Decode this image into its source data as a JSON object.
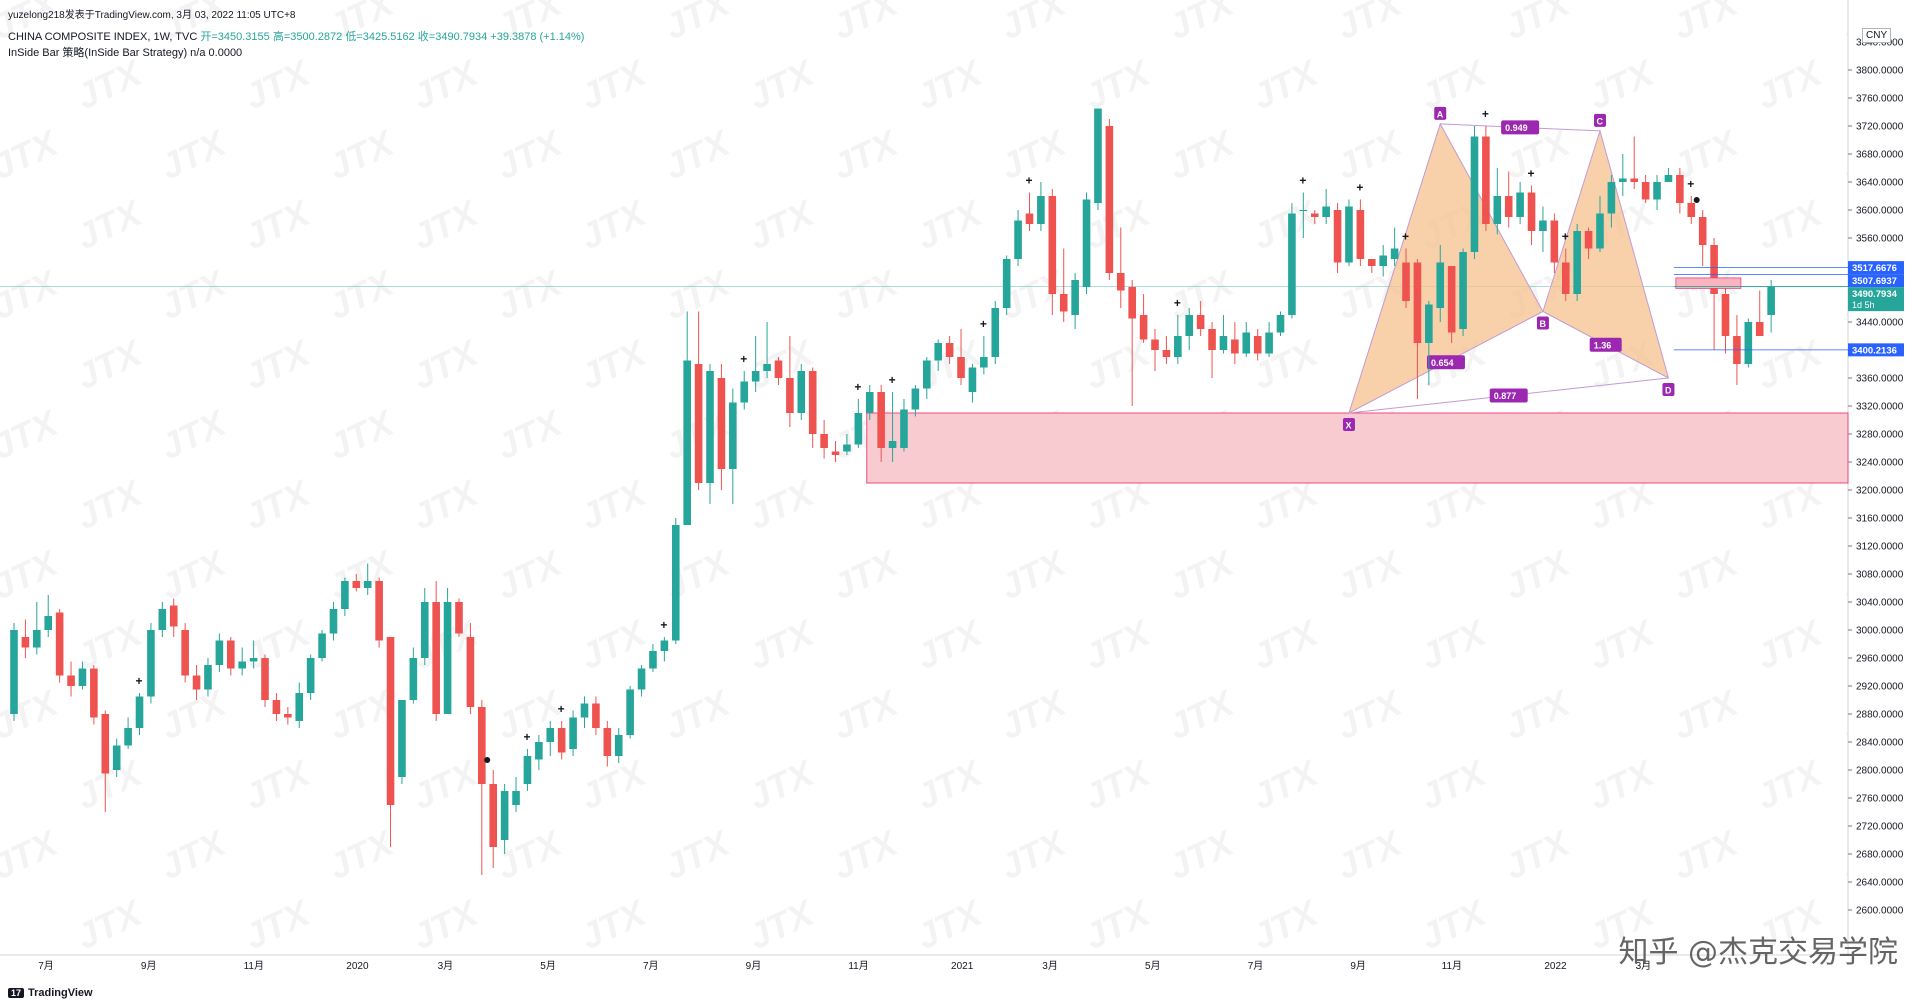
{
  "header": {
    "credit": "yuzelong218发表于TradingView.com, 3月 03, 2022 11:05 UTC+8",
    "symbol": "CHINA COMPOSITE INDEX, 1W, TVC",
    "open": "开=3450.3155",
    "high": "高=3500.2872",
    "low": "低=3425.5162",
    "close": "收=3490.7934",
    "change": "+39.3878 (+1.14%)",
    "indicator": "InSide Bar 策略(InSide Bar Strategy)  n/a  0.0000"
  },
  "currency": "CNY",
  "footer_logo": "TradingView",
  "brand_watermark": "知乎 @杰克交易学院",
  "colors": {
    "up": "#26a69a",
    "down": "#ef5350",
    "zone": "#f8c9cf",
    "zone_border": "#ec407a",
    "pattern": "#f5c08c",
    "pattern_line": "#c39bd3",
    "label_bg": "#9c27b0",
    "price_line": "#26a69a",
    "blue": "#2962ff"
  },
  "chart_data": {
    "type": "candlestick",
    "title": "CHINA COMPOSITE INDEX, 1W, TVC",
    "ylim": [
      2560,
      3820
    ],
    "yticks": [
      2600,
      2640,
      2680,
      2720,
      2760,
      2800,
      2840,
      2880,
      2920,
      2960,
      3000,
      3040,
      3080,
      3120,
      3160,
      3200,
      3240,
      3280,
      3320,
      3360,
      3400,
      3440,
      3480,
      3520,
      3560,
      3600,
      3640,
      3680,
      3720,
      3760,
      3800
    ],
    "ytick_labels": [
      "2600.0000",
      "2640.0000",
      "2680.0000",
      "2720.0000",
      "2760.0000",
      "2800.0000",
      "2840.0000",
      "2880.0000",
      "2920.0000",
      "2960.0000",
      "3000.0000",
      "3040.0000",
      "3080.0000",
      "3120.0000",
      "3160.0000",
      "3200.0000",
      "3240.0000",
      "3280.0000",
      "3320.0000",
      "3360.0000",
      "3400.0000",
      "3440.0000",
      "3480.0000",
      "3520.0000",
      "3560.0000",
      "3600.0000",
      "3640.0000",
      "3680.0000",
      "3720.0000",
      "3760.0000",
      "3800.0000"
    ],
    "top_partial_tick": "3840.0000",
    "xticks": [
      {
        "label": "7月",
        "i": 3
      },
      {
        "label": "9月",
        "i": 12
      },
      {
        "label": "11月",
        "i": 21
      },
      {
        "label": "2020",
        "i": 30
      },
      {
        "label": "3月",
        "i": 38
      },
      {
        "label": "5月",
        "i": 47
      },
      {
        "label": "7月",
        "i": 56
      },
      {
        "label": "9月",
        "i": 65
      },
      {
        "label": "11月",
        "i": 74
      },
      {
        "label": "2021",
        "i": 83
      },
      {
        "label": "3月",
        "i": 91
      },
      {
        "label": "5月",
        "i": 100
      },
      {
        "label": "7月",
        "i": 109
      },
      {
        "label": "9月",
        "i": 118
      },
      {
        "label": "11月",
        "i": 126
      },
      {
        "label": "2022",
        "i": 135
      },
      {
        "label": "3月",
        "i": 143
      }
    ],
    "candles": [
      [
        2880,
        3000,
        3010,
        2870
      ],
      [
        2990,
        2975,
        3015,
        2960
      ],
      [
        2975,
        3000,
        3040,
        2965
      ],
      [
        3000,
        3020,
        3050,
        2990
      ],
      [
        3025,
        2935,
        3030,
        2925
      ],
      [
        2935,
        2920,
        2955,
        2905
      ],
      [
        2920,
        2945,
        2955,
        2915
      ],
      [
        2945,
        2875,
        2950,
        2865
      ],
      [
        2880,
        2795,
        2885,
        2740
      ],
      [
        2800,
        2835,
        2845,
        2790
      ],
      [
        2835,
        2860,
        2875,
        2830
      ],
      [
        2860,
        2905,
        2910,
        2850
      ],
      [
        2905,
        3000,
        3010,
        2895
      ],
      [
        3000,
        3030,
        3040,
        2990
      ],
      [
        3035,
        3005,
        3045,
        2990
      ],
      [
        3000,
        2935,
        3010,
        2925
      ],
      [
        2935,
        2915,
        2950,
        2900
      ],
      [
        2915,
        2950,
        2960,
        2905
      ],
      [
        2950,
        2985,
        2995,
        2940
      ],
      [
        2985,
        2945,
        2990,
        2935
      ],
      [
        2945,
        2955,
        2975,
        2935
      ],
      [
        2955,
        2960,
        2985,
        2945
      ],
      [
        2960,
        2900,
        2965,
        2890
      ],
      [
        2900,
        2880,
        2910,
        2870
      ],
      [
        2880,
        2875,
        2890,
        2865
      ],
      [
        2870,
        2910,
        2925,
        2860
      ],
      [
        2910,
        2960,
        2965,
        2900
      ],
      [
        2960,
        2995,
        3000,
        2955
      ],
      [
        2995,
        3030,
        3040,
        2985
      ],
      [
        3030,
        3070,
        3075,
        3020
      ],
      [
        3070,
        3060,
        3080,
        3055
      ],
      [
        3060,
        3070,
        3095,
        3050
      ],
      [
        3070,
        2985,
        3075,
        2975
      ],
      [
        2990,
        2750,
        2990,
        2690
      ],
      [
        2790,
        2900,
        2900,
        2780
      ],
      [
        2900,
        2960,
        2975,
        2895
      ],
      [
        2960,
        3040,
        3060,
        2950
      ],
      [
        3040,
        2880,
        3070,
        2870
      ],
      [
        2880,
        3040,
        3060,
        2880
      ],
      [
        3040,
        2995,
        3045,
        2990
      ],
      [
        2990,
        2890,
        3010,
        2880
      ],
      [
        2890,
        2780,
        2900,
        2650
      ],
      [
        2780,
        2690,
        2800,
        2660
      ],
      [
        2700,
        2770,
        2780,
        2680
      ],
      [
        2750,
        2770,
        2790,
        2740
      ],
      [
        2780,
        2820,
        2830,
        2770
      ],
      [
        2815,
        2840,
        2850,
        2800
      ],
      [
        2840,
        2860,
        2870,
        2820
      ],
      [
        2860,
        2825,
        2870,
        2815
      ],
      [
        2830,
        2875,
        2885,
        2820
      ],
      [
        2875,
        2895,
        2905,
        2860
      ],
      [
        2895,
        2860,
        2905,
        2850
      ],
      [
        2860,
        2820,
        2870,
        2805
      ],
      [
        2820,
        2850,
        2860,
        2810
      ],
      [
        2850,
        2915,
        2920,
        2845
      ],
      [
        2915,
        2945,
        2950,
        2905
      ],
      [
        2945,
        2970,
        2980,
        2940
      ],
      [
        2970,
        2985,
        2990,
        2955
      ],
      [
        2985,
        3150,
        3160,
        2980
      ],
      [
        3150,
        3385,
        3455,
        3190
      ],
      [
        3380,
        3210,
        3455,
        3200
      ],
      [
        3210,
        3370,
        3380,
        3180
      ],
      [
        3360,
        3230,
        3380,
        3200
      ],
      [
        3230,
        3325,
        3345,
        3180
      ],
      [
        3325,
        3355,
        3370,
        3315
      ],
      [
        3355,
        3370,
        3420,
        3340
      ],
      [
        3370,
        3380,
        3440,
        3360
      ],
      [
        3385,
        3360,
        3390,
        3350
      ],
      [
        3360,
        3310,
        3420,
        3290
      ],
      [
        3310,
        3370,
        3380,
        3300
      ],
      [
        3370,
        3280,
        3375,
        3260
      ],
      [
        3280,
        3260,
        3300,
        3245
      ],
      [
        3255,
        3250,
        3270,
        3240
      ],
      [
        3255,
        3265,
        3280,
        3250
      ],
      [
        3265,
        3310,
        3330,
        3260
      ],
      [
        3310,
        3340,
        3350,
        3300
      ],
      [
        3340,
        3260,
        3350,
        3240
      ],
      [
        3260,
        3270,
        3340,
        3240
      ],
      [
        3260,
        3315,
        3330,
        3255
      ],
      [
        3315,
        3345,
        3350,
        3305
      ],
      [
        3345,
        3385,
        3390,
        3330
      ],
      [
        3385,
        3410,
        3415,
        3370
      ],
      [
        3410,
        3390,
        3420,
        3380
      ],
      [
        3390,
        3360,
        3430,
        3350
      ],
      [
        3340,
        3375,
        3380,
        3325
      ],
      [
        3375,
        3390,
        3420,
        3365
      ],
      [
        3390,
        3460,
        3470,
        3380
      ],
      [
        3460,
        3530,
        3535,
        3450
      ],
      [
        3530,
        3585,
        3600,
        3520
      ],
      [
        3595,
        3580,
        3625,
        3570
      ],
      [
        3580,
        3620,
        3640,
        3570
      ],
      [
        3620,
        3480,
        3630,
        3450
      ],
      [
        3480,
        3455,
        3545,
        3440
      ],
      [
        3450,
        3500,
        3510,
        3430
      ],
      [
        3490,
        3615,
        3625,
        3480
      ],
      [
        3610,
        3745,
        3745,
        3600
      ],
      [
        3720,
        3510,
        3730,
        3500
      ],
      [
        3510,
        3485,
        3575,
        3460
      ],
      [
        3490,
        3445,
        3500,
        3320
      ],
      [
        3450,
        3415,
        3480,
        3410
      ],
      [
        3415,
        3400,
        3430,
        3370
      ],
      [
        3400,
        3390,
        3420,
        3380
      ],
      [
        3390,
        3420,
        3450,
        3380
      ],
      [
        3420,
        3450,
        3460,
        3400
      ],
      [
        3450,
        3430,
        3470,
        3420
      ],
      [
        3430,
        3400,
        3440,
        3360
      ],
      [
        3400,
        3420,
        3450,
        3395
      ],
      [
        3415,
        3395,
        3440,
        3380
      ],
      [
        3395,
        3425,
        3440,
        3390
      ],
      [
        3420,
        3395,
        3430,
        3385
      ],
      [
        3395,
        3425,
        3440,
        3390
      ],
      [
        3425,
        3450,
        3455,
        3420
      ],
      [
        3450,
        3595,
        3610,
        3445
      ],
      [
        3600,
        3600,
        3625,
        3560
      ],
      [
        3595,
        3590,
        3600,
        3580
      ],
      [
        3590,
        3605,
        3630,
        3580
      ],
      [
        3600,
        3525,
        3610,
        3510
      ],
      [
        3525,
        3605,
        3615,
        3520
      ],
      [
        3600,
        3530,
        3615,
        3520
      ],
      [
        3530,
        3520,
        3530,
        3510
      ],
      [
        3520,
        3535,
        3550,
        3505
      ],
      [
        3530,
        3545,
        3575,
        3520
      ],
      [
        3525,
        3470,
        3545,
        3460
      ],
      [
        3525,
        3410,
        3530,
        3330
      ],
      [
        3410,
        3465,
        3470,
        3350
      ],
      [
        3460,
        3525,
        3550,
        3440
      ],
      [
        3520,
        3425,
        3520,
        3410
      ],
      [
        3430,
        3540,
        3545,
        3420
      ],
      [
        3540,
        3705,
        3720,
        3530
      ],
      [
        3705,
        3580,
        3720,
        3570
      ],
      [
        3580,
        3620,
        3660,
        3565
      ],
      [
        3620,
        3590,
        3655,
        3575
      ],
      [
        3590,
        3625,
        3640,
        3580
      ],
      [
        3625,
        3570,
        3635,
        3550
      ],
      [
        3570,
        3585,
        3605,
        3540
      ],
      [
        3585,
        3525,
        3595,
        3510
      ],
      [
        3525,
        3480,
        3545,
        3470
      ],
      [
        3480,
        3570,
        3580,
        3470
      ],
      [
        3570,
        3545,
        3575,
        3530
      ],
      [
        3545,
        3595,
        3620,
        3540
      ],
      [
        3595,
        3640,
        3650,
        3575
      ],
      [
        3640,
        3645,
        3680,
        3620
      ],
      [
        3645,
        3640,
        3705,
        3630
      ],
      [
        3640,
        3615,
        3650,
        3610
      ],
      [
        3615,
        3640,
        3650,
        3600
      ],
      [
        3640,
        3650,
        3660,
        3640
      ],
      [
        3650,
        3610,
        3660,
        3595
      ],
      [
        3610,
        3590,
        3620,
        3580
      ],
      [
        3590,
        3550,
        3600,
        3520
      ],
      [
        3550,
        3480,
        3560,
        3400
      ],
      [
        3480,
        3420,
        3490,
        3395
      ],
      [
        3420,
        3380,
        3450,
        3350
      ],
      [
        3380,
        3440,
        3445,
        3375
      ],
      [
        3440,
        3420,
        3485,
        3420
      ],
      [
        3450,
        3490,
        3500,
        3425
      ]
    ],
    "markers_plus": [
      11,
      45,
      48,
      57,
      64,
      74,
      77,
      85,
      89,
      102,
      113,
      118,
      122,
      129,
      133,
      136,
      147
    ],
    "markers_dot": [
      42,
      148
    ],
    "zone": {
      "x_start": 75,
      "x_end": 999,
      "y_low": 3210,
      "y_high": 3310
    },
    "inside_bar_box": {
      "x_start": 146,
      "x_end": 151,
      "y_low": 3488,
      "y_high": 3503
    },
    "harmonic": {
      "points": {
        "X": {
          "i": 117,
          "y": 3310
        },
        "A": {
          "i": 125,
          "y": 3723
        },
        "B": {
          "i": 134,
          "y": 3455
        },
        "C": {
          "i": 139,
          "y": 3713
        },
        "D": {
          "i": 145,
          "y": 3360
        }
      },
      "ratios": [
        {
          "label": "0.949",
          "between": [
            "A",
            "C"
          ]
        },
        {
          "label": "0.654",
          "between": [
            "X",
            "B"
          ]
        },
        {
          "label": "1.36",
          "between": [
            "B",
            "D"
          ]
        },
        {
          "label": "0.877",
          "between": [
            "X",
            "D"
          ]
        }
      ]
    },
    "price_labels": [
      {
        "text": "3517.6676",
        "value": 3517.6676,
        "color": "#2962ff"
      },
      {
        "text": "3507.6937",
        "value": 3507.6937,
        "color": "#2962ff"
      },
      {
        "text": "3490.7934",
        "value": 3490.7934,
        "color": "#26a69a",
        "sub": "1d 5h"
      },
      {
        "text": "3400.2136",
        "value": 3400.2136,
        "color": "#2962ff"
      }
    ],
    "last_price": 3490.7934
  }
}
